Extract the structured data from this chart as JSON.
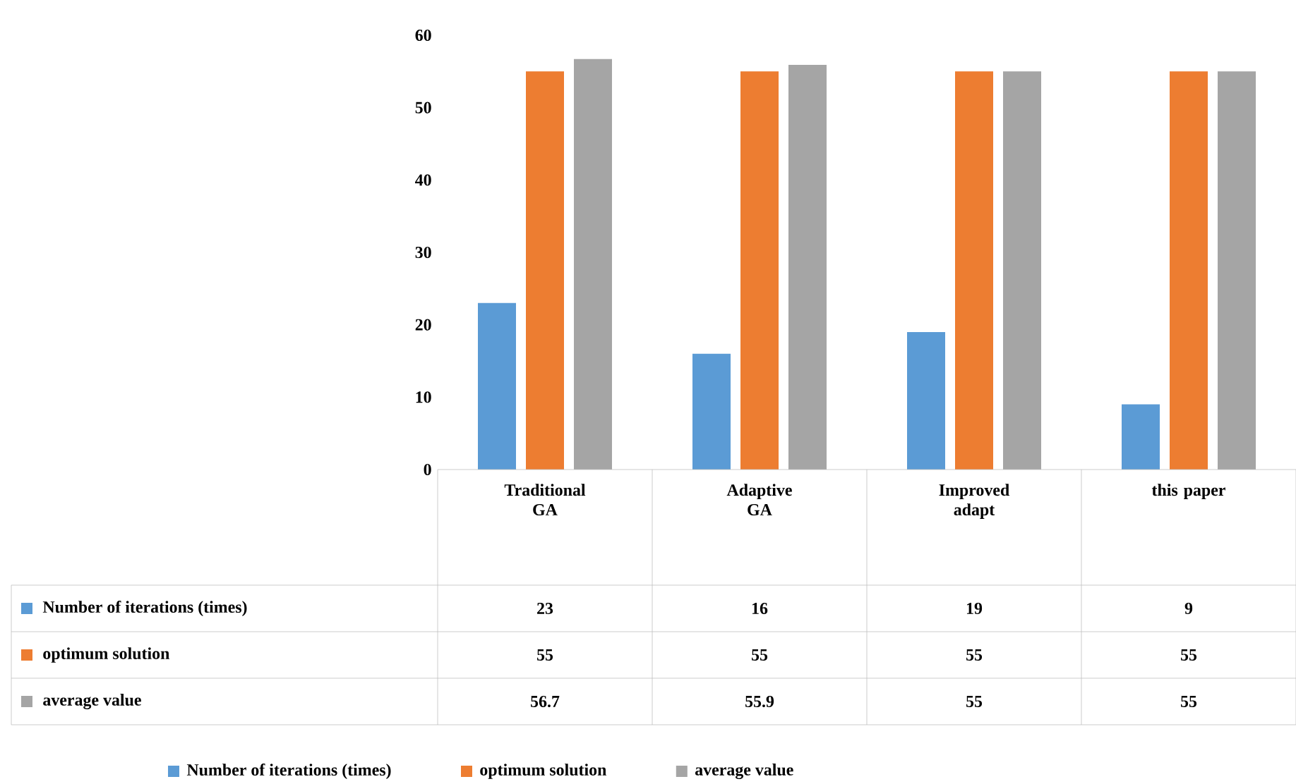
{
  "chart_data": {
    "type": "bar",
    "categories": [
      "Traditional GA",
      "Adaptive GA",
      "Improved adapt",
      "this paper"
    ],
    "series": [
      {
        "name": "Number of iterations (times)",
        "color": "#5b9bd5",
        "values": [
          23,
          16,
          19,
          9
        ]
      },
      {
        "name": "optimum solution",
        "color": "#ed7d31",
        "values": [
          55,
          55,
          55,
          55
        ]
      },
      {
        "name": "average value",
        "color": "#a5a5a5",
        "values": [
          56.7,
          55.9,
          55,
          55
        ]
      }
    ],
    "ylim": [
      0,
      60
    ],
    "yticks": [
      0,
      10,
      20,
      30,
      40,
      50,
      60
    ],
    "data_labels": true,
    "legend": "bottom"
  }
}
